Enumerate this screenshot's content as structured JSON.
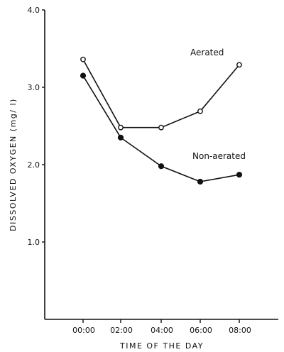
{
  "chart_data": {
    "type": "line",
    "title": "",
    "xlabel": "TIME OF THE DAY",
    "ylabel": "DISSOLVED OXYGEN  (mg/ l)",
    "ylim": [
      0,
      4.0
    ],
    "y_ticks": [
      1.0,
      2.0,
      3.0,
      4.0
    ],
    "y_tick_labels": [
      "1.0",
      "2.0",
      "3.0",
      "4.0"
    ],
    "categories": [
      "00:00",
      "02:00",
      "04:00",
      "06:00",
      "08:00"
    ],
    "grid": false,
    "series": [
      {
        "name": "Aerated",
        "marker": "open-circle",
        "values": [
          3.36,
          2.48,
          2.48,
          2.69,
          3.29
        ]
      },
      {
        "name": "Non-aerated",
        "marker": "filled-circle",
        "values": [
          3.15,
          2.35,
          1.98,
          1.78,
          1.87
        ]
      }
    ]
  }
}
